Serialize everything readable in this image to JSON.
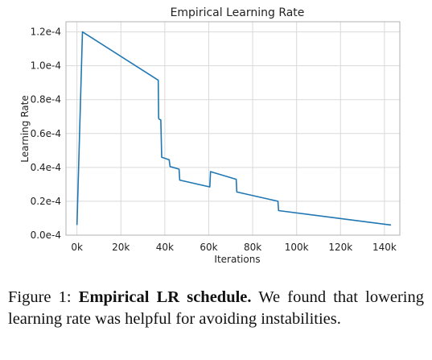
{
  "chart_data": {
    "type": "line",
    "title": "Empirical Learning Rate",
    "xlabel": "Iterations",
    "ylabel": "Learning Rate",
    "xlim": [
      -5000,
      147000
    ],
    "ylim": [
      0,
      0.000126
    ],
    "grid": true,
    "x_ticks": [
      0,
      20000,
      40000,
      60000,
      80000,
      100000,
      120000,
      140000
    ],
    "x_tick_labels": [
      "0k",
      "20k",
      "40k",
      "60k",
      "80k",
      "100k",
      "120k",
      "140k"
    ],
    "y_ticks": [
      0,
      2e-05,
      4e-05,
      6e-05,
      8e-05,
      0.0001,
      0.00012
    ],
    "y_tick_labels": [
      "0.0e-4",
      "0.2e-4",
      "0.4e-4",
      "0.6e-4",
      "0.8e-4",
      "1.0e-4",
      "1.2e-4"
    ],
    "series": [
      {
        "x": [
          0,
          2500,
          37000,
          37200,
          37400,
          38200,
          38600,
          42000,
          42400,
          46500,
          46800,
          60500,
          60800,
          72500,
          72800,
          91500,
          91800,
          143000
        ],
        "y": [
          6e-06,
          0.00012,
          9.15e-05,
          6.9e-05,
          6.85e-05,
          6.8e-05,
          4.6e-05,
          4.45e-05,
          4.05e-05,
          3.9e-05,
          3.25e-05,
          2.85e-05,
          3.75e-05,
          3.3e-05,
          2.55e-05,
          2e-05,
          1.45e-05,
          6e-06
        ]
      }
    ]
  },
  "caption": {
    "prefix": "Figure 1: ",
    "bold": "Empirical LR schedule.",
    "rest": " We found that lowering learning rate was helpful for avoiding instabilities."
  }
}
